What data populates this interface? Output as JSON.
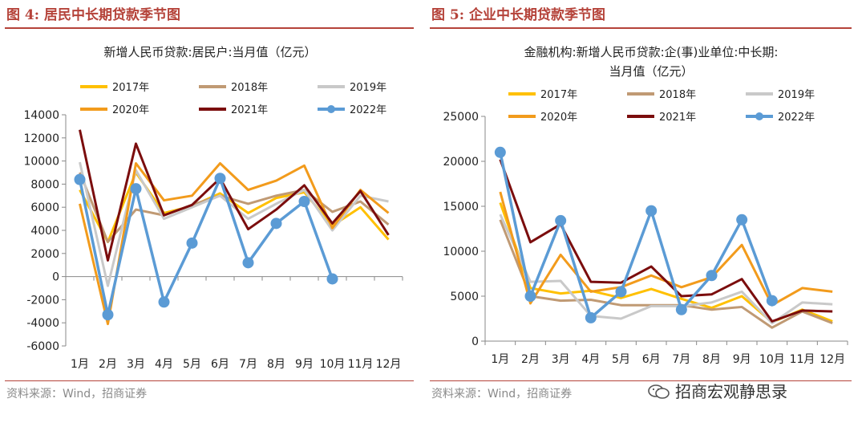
{
  "left": {
    "figure_title": "图 4:  居民中长期贷款季节图",
    "source": "资料来源：Wind，招商证券"
  },
  "right": {
    "figure_title": "图 5:  企业中长期贷款季节图",
    "source": "资料来源：Wind，招商证券"
  },
  "watermark": "招商宏观静思录",
  "colors": {
    "accent": "#b5433a",
    "2017": "#ffc000",
    "2018": "#c09a74",
    "2019": "#c9c9c9",
    "2020": "#f29b1c",
    "2021": "#7b0d0d",
    "2022": "#5b9bd5"
  },
  "chart_data": [
    {
      "type": "line",
      "title": "新增人民币贷款:居民户:当月值（亿元）",
      "categories": [
        "1月",
        "2月",
        "3月",
        "4月",
        "5月",
        "6月",
        "7月",
        "8月",
        "9月",
        "10月",
        "11月",
        "12月"
      ],
      "ylim": [
        -6000,
        14000
      ],
      "yticks": [
        -6000,
        -4000,
        -2000,
        0,
        2000,
        4000,
        6000,
        8000,
        10000,
        12000,
        14000
      ],
      "legend": "top",
      "series": [
        {
          "name": "2017年",
          "values": [
            7500,
            3000,
            9000,
            5500,
            6100,
            7200,
            5500,
            6800,
            7300,
            4400,
            6000,
            3200
          ]
        },
        {
          "name": "2018年",
          "values": [
            9000,
            3000,
            5800,
            5300,
            6200,
            7000,
            6300,
            7000,
            7500,
            5600,
            6500,
            4500
          ]
        },
        {
          "name": "2019年",
          "values": [
            9900,
            -800,
            9200,
            5000,
            6000,
            7000,
            5000,
            6300,
            7500,
            4000,
            7000,
            6500
          ]
        },
        {
          "name": "2020年",
          "values": [
            6300,
            -4100,
            9800,
            6600,
            7000,
            9800,
            7500,
            8300,
            9600,
            4200,
            7500,
            5500
          ]
        },
        {
          "name": "2021年",
          "values": [
            12700,
            1400,
            11500,
            5300,
            6200,
            8500,
            4100,
            5800,
            7900,
            4600,
            7400,
            3600
          ]
        },
        {
          "name": "2022年",
          "values": [
            8400,
            -3300,
            7600,
            -2200,
            2900,
            8500,
            1200,
            4600,
            6500,
            -200,
            null,
            null
          ]
        }
      ]
    },
    {
      "type": "line",
      "title": "金融机构:新增人民币贷款:企(事)业单位:中长期:当月值（亿元）",
      "categories": [
        "1月",
        "2月",
        "3月",
        "4月",
        "5月",
        "6月",
        "7月",
        "8月",
        "9月",
        "10月",
        "11月",
        "12月"
      ],
      "ylim": [
        0,
        25000
      ],
      "yticks": [
        0,
        5000,
        10000,
        15000,
        20000,
        25000
      ],
      "legend": "top",
      "series": [
        {
          "name": "2017年",
          "values": [
            15400,
            5900,
            5300,
            5600,
            4800,
            5800,
            4700,
            3700,
            5000,
            2100,
            3500,
            2200
          ]
        },
        {
          "name": "2018年",
          "values": [
            13500,
            5000,
            4500,
            4600,
            4000,
            4000,
            4000,
            3500,
            3800,
            1500,
            3300,
            2000
          ]
        },
        {
          "name": "2019年",
          "values": [
            14100,
            6600,
            6700,
            2800,
            2500,
            3900,
            3900,
            4300,
            5500,
            2000,
            4300,
            4100
          ]
        },
        {
          "name": "2020年",
          "values": [
            16600,
            4200,
            9600,
            5500,
            6000,
            7300,
            6000,
            7100,
            10700,
            4000,
            5900,
            5500
          ]
        },
        {
          "name": "2021年",
          "values": [
            20200,
            11000,
            13000,
            6600,
            6500,
            8300,
            5000,
            5200,
            6900,
            2200,
            3400,
            3300
          ]
        },
        {
          "name": "2022年",
          "values": [
            21000,
            5000,
            13400,
            2600,
            5500,
            14500,
            3500,
            7300,
            13500,
            4500,
            null,
            null
          ]
        }
      ]
    }
  ]
}
